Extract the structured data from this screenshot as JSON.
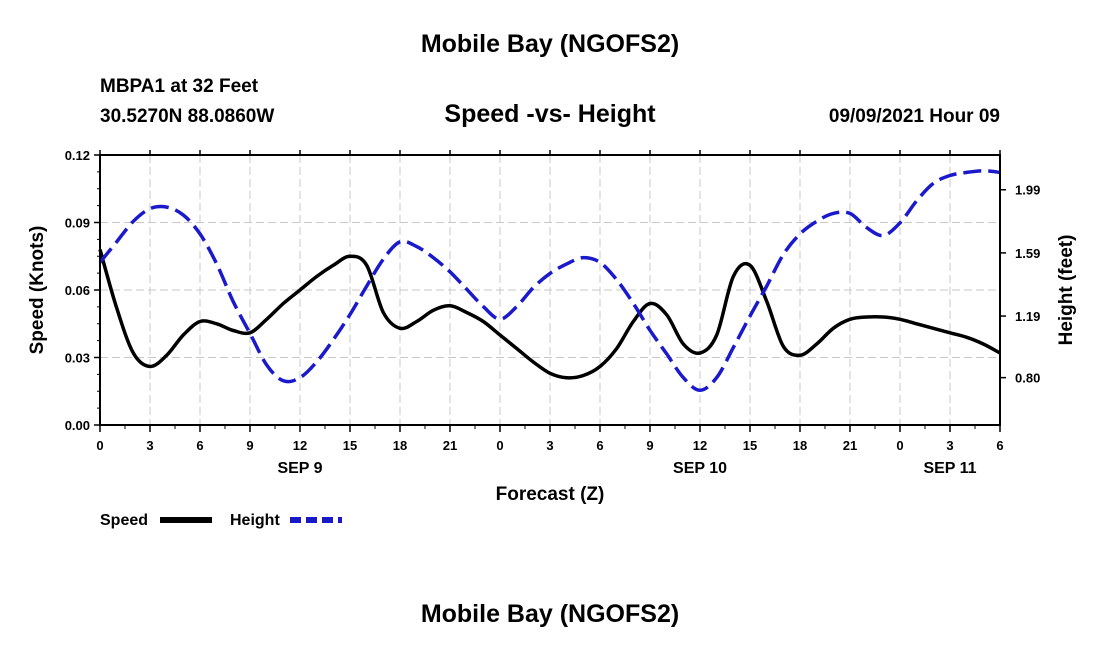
{
  "header": {
    "title": "Mobile Bay (NGOFS2)",
    "station": "MBPA1 at 32 Feet",
    "coords": "30.5270N  88.0860W",
    "subtitle": "Speed -vs- Height",
    "datetime": "09/09/2021 Hour 09"
  },
  "footer": {
    "title": "Mobile Bay (NGOFS2)"
  },
  "chart_data": {
    "type": "line",
    "xlabel": "Forecast (Z)",
    "ylabel": "Speed (Knots)",
    "y2label": "Height (feet)",
    "x_range_hours": [
      0,
      54
    ],
    "x_ticks": [
      {
        "h": 0,
        "label": "0"
      },
      {
        "h": 3,
        "label": "3"
      },
      {
        "h": 6,
        "label": "6"
      },
      {
        "h": 9,
        "label": "9"
      },
      {
        "h": 12,
        "label": "12"
      },
      {
        "h": 15,
        "label": "15"
      },
      {
        "h": 18,
        "label": "18"
      },
      {
        "h": 21,
        "label": "21"
      },
      {
        "h": 24,
        "label": "0"
      },
      {
        "h": 27,
        "label": "3"
      },
      {
        "h": 30,
        "label": "6"
      },
      {
        "h": 33,
        "label": "9"
      },
      {
        "h": 36,
        "label": "12"
      },
      {
        "h": 39,
        "label": "15"
      },
      {
        "h": 42,
        "label": "18"
      },
      {
        "h": 45,
        "label": "21"
      },
      {
        "h": 48,
        "label": "0"
      },
      {
        "h": 51,
        "label": "3"
      },
      {
        "h": 54,
        "label": "6"
      }
    ],
    "date_labels": [
      {
        "h": 12,
        "label": "SEP 9"
      },
      {
        "h": 36,
        "label": "SEP 10"
      },
      {
        "h": 51,
        "label": "SEP 11"
      }
    ],
    "ylim": [
      0,
      0.12
    ],
    "y_ticks": [
      "0.00",
      "0.03",
      "0.06",
      "0.09",
      "0.12"
    ],
    "y2lim": [
      0.5,
      2.21
    ],
    "y2_ticks": [
      "0.80",
      "1.19",
      "1.59",
      "1.99"
    ],
    "grid": true,
    "legend_position": "bottom-left",
    "series": [
      {
        "name": "Speed",
        "axis": "left",
        "color": "#000000",
        "style": "solid",
        "x": [
          0,
          1,
          2,
          3,
          4,
          5,
          6,
          7,
          8,
          9,
          10,
          11,
          12,
          13,
          14,
          15,
          16,
          17,
          18,
          19,
          20,
          21,
          22,
          23,
          24,
          25,
          26,
          27,
          28,
          29,
          30,
          31,
          32,
          33,
          34,
          35,
          36,
          37,
          38,
          39,
          40,
          41,
          42,
          43,
          44,
          45,
          46,
          47,
          48,
          49,
          50,
          51,
          52,
          53,
          54
        ],
        "values": [
          0.078,
          0.052,
          0.032,
          0.026,
          0.031,
          0.04,
          0.046,
          0.045,
          0.042,
          0.041,
          0.047,
          0.054,
          0.06,
          0.066,
          0.071,
          0.075,
          0.071,
          0.05,
          0.043,
          0.046,
          0.051,
          0.053,
          0.05,
          0.046,
          0.04,
          0.034,
          0.028,
          0.023,
          0.021,
          0.022,
          0.026,
          0.034,
          0.046,
          0.054,
          0.049,
          0.036,
          0.032,
          0.04,
          0.066,
          0.071,
          0.055,
          0.035,
          0.031,
          0.036,
          0.043,
          0.047,
          0.048,
          0.048,
          0.047,
          0.045,
          0.043,
          0.041,
          0.039,
          0.036,
          0.032
        ]
      },
      {
        "name": "Height",
        "axis": "right",
        "color": "#1a1acc",
        "style": "dashed",
        "x": [
          0,
          1,
          2,
          3,
          4,
          5,
          6,
          7,
          8,
          9,
          10,
          11,
          12,
          13,
          14,
          15,
          16,
          17,
          18,
          19,
          20,
          21,
          22,
          23,
          24,
          25,
          26,
          27,
          28,
          29,
          30,
          31,
          32,
          33,
          34,
          35,
          36,
          37,
          38,
          39,
          40,
          41,
          42,
          43,
          44,
          45,
          46,
          47,
          48,
          49,
          50,
          51,
          52,
          53,
          54
        ],
        "values": [
          1.53,
          1.66,
          1.79,
          1.87,
          1.88,
          1.83,
          1.71,
          1.52,
          1.28,
          1.08,
          0.88,
          0.78,
          0.8,
          0.9,
          1.04,
          1.2,
          1.38,
          1.55,
          1.66,
          1.63,
          1.56,
          1.47,
          1.36,
          1.25,
          1.17,
          1.25,
          1.37,
          1.46,
          1.52,
          1.56,
          1.53,
          1.42,
          1.27,
          1.1,
          0.95,
          0.8,
          0.72,
          0.8,
          0.99,
          1.19,
          1.38,
          1.58,
          1.71,
          1.79,
          1.84,
          1.84,
          1.75,
          1.7,
          1.78,
          1.92,
          2.03,
          2.08,
          2.1,
          2.11,
          2.1
        ]
      }
    ]
  }
}
